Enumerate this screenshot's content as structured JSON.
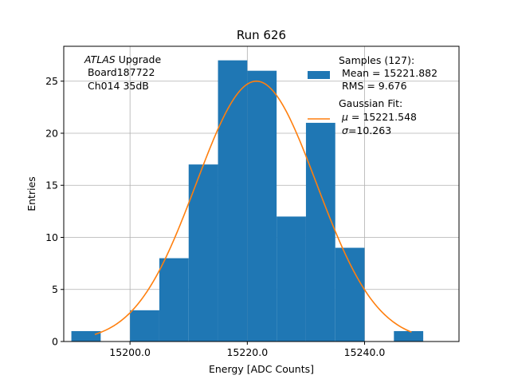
{
  "chart_data": {
    "type": "bar",
    "title": "Run 626",
    "xlabel": "Energy [ADC Counts]",
    "ylabel": "Entries",
    "xlim": [
      15188.7,
      15256.1
    ],
    "ylim": [
      0,
      28.35
    ],
    "grid": true,
    "x_ticks": [
      {
        "value": 15200,
        "label": "15200.0"
      },
      {
        "value": 15220,
        "label": "15220.0"
      },
      {
        "value": 15240,
        "label": "15240.0"
      }
    ],
    "y_ticks": [
      {
        "value": 0,
        "label": "0"
      },
      {
        "value": 5,
        "label": "5"
      },
      {
        "value": 10,
        "label": "10"
      },
      {
        "value": 15,
        "label": "15"
      },
      {
        "value": 20,
        "label": "20"
      },
      {
        "value": 25,
        "label": "25"
      }
    ],
    "histogram": {
      "bin_edges": [
        15190,
        15195,
        15200,
        15205,
        15210,
        15215,
        15220,
        15225,
        15230,
        15235,
        15240,
        15245,
        15250
      ],
      "counts": [
        1,
        0,
        3,
        8,
        17,
        27,
        26,
        12,
        21,
        9,
        0,
        1
      ],
      "color": "#1f77b4"
    },
    "fit_curve": {
      "type": "gaussian",
      "mu": 15221.548,
      "sigma": 10.263,
      "amplitude": 25.0,
      "x_range": [
        15194,
        15248
      ],
      "color": "#ff7f0e"
    },
    "legend": {
      "position": "top-right",
      "samples": {
        "line1": "Samples (127):",
        "line2": " Mean = 15221.882",
        "line3": " RMS = 9.676"
      },
      "fit": {
        "line1": "Gaussian Fit:",
        "line2_symbol": "μ",
        "line2_rest": " = 15221.548",
        "line3_symbol": "σ",
        "line3_rest": "=10.263"
      }
    },
    "annotation": {
      "italic": "ATLAS",
      "rest": " Upgrade",
      "line2": " Board187722",
      "line3": " Ch014 35dB"
    }
  }
}
